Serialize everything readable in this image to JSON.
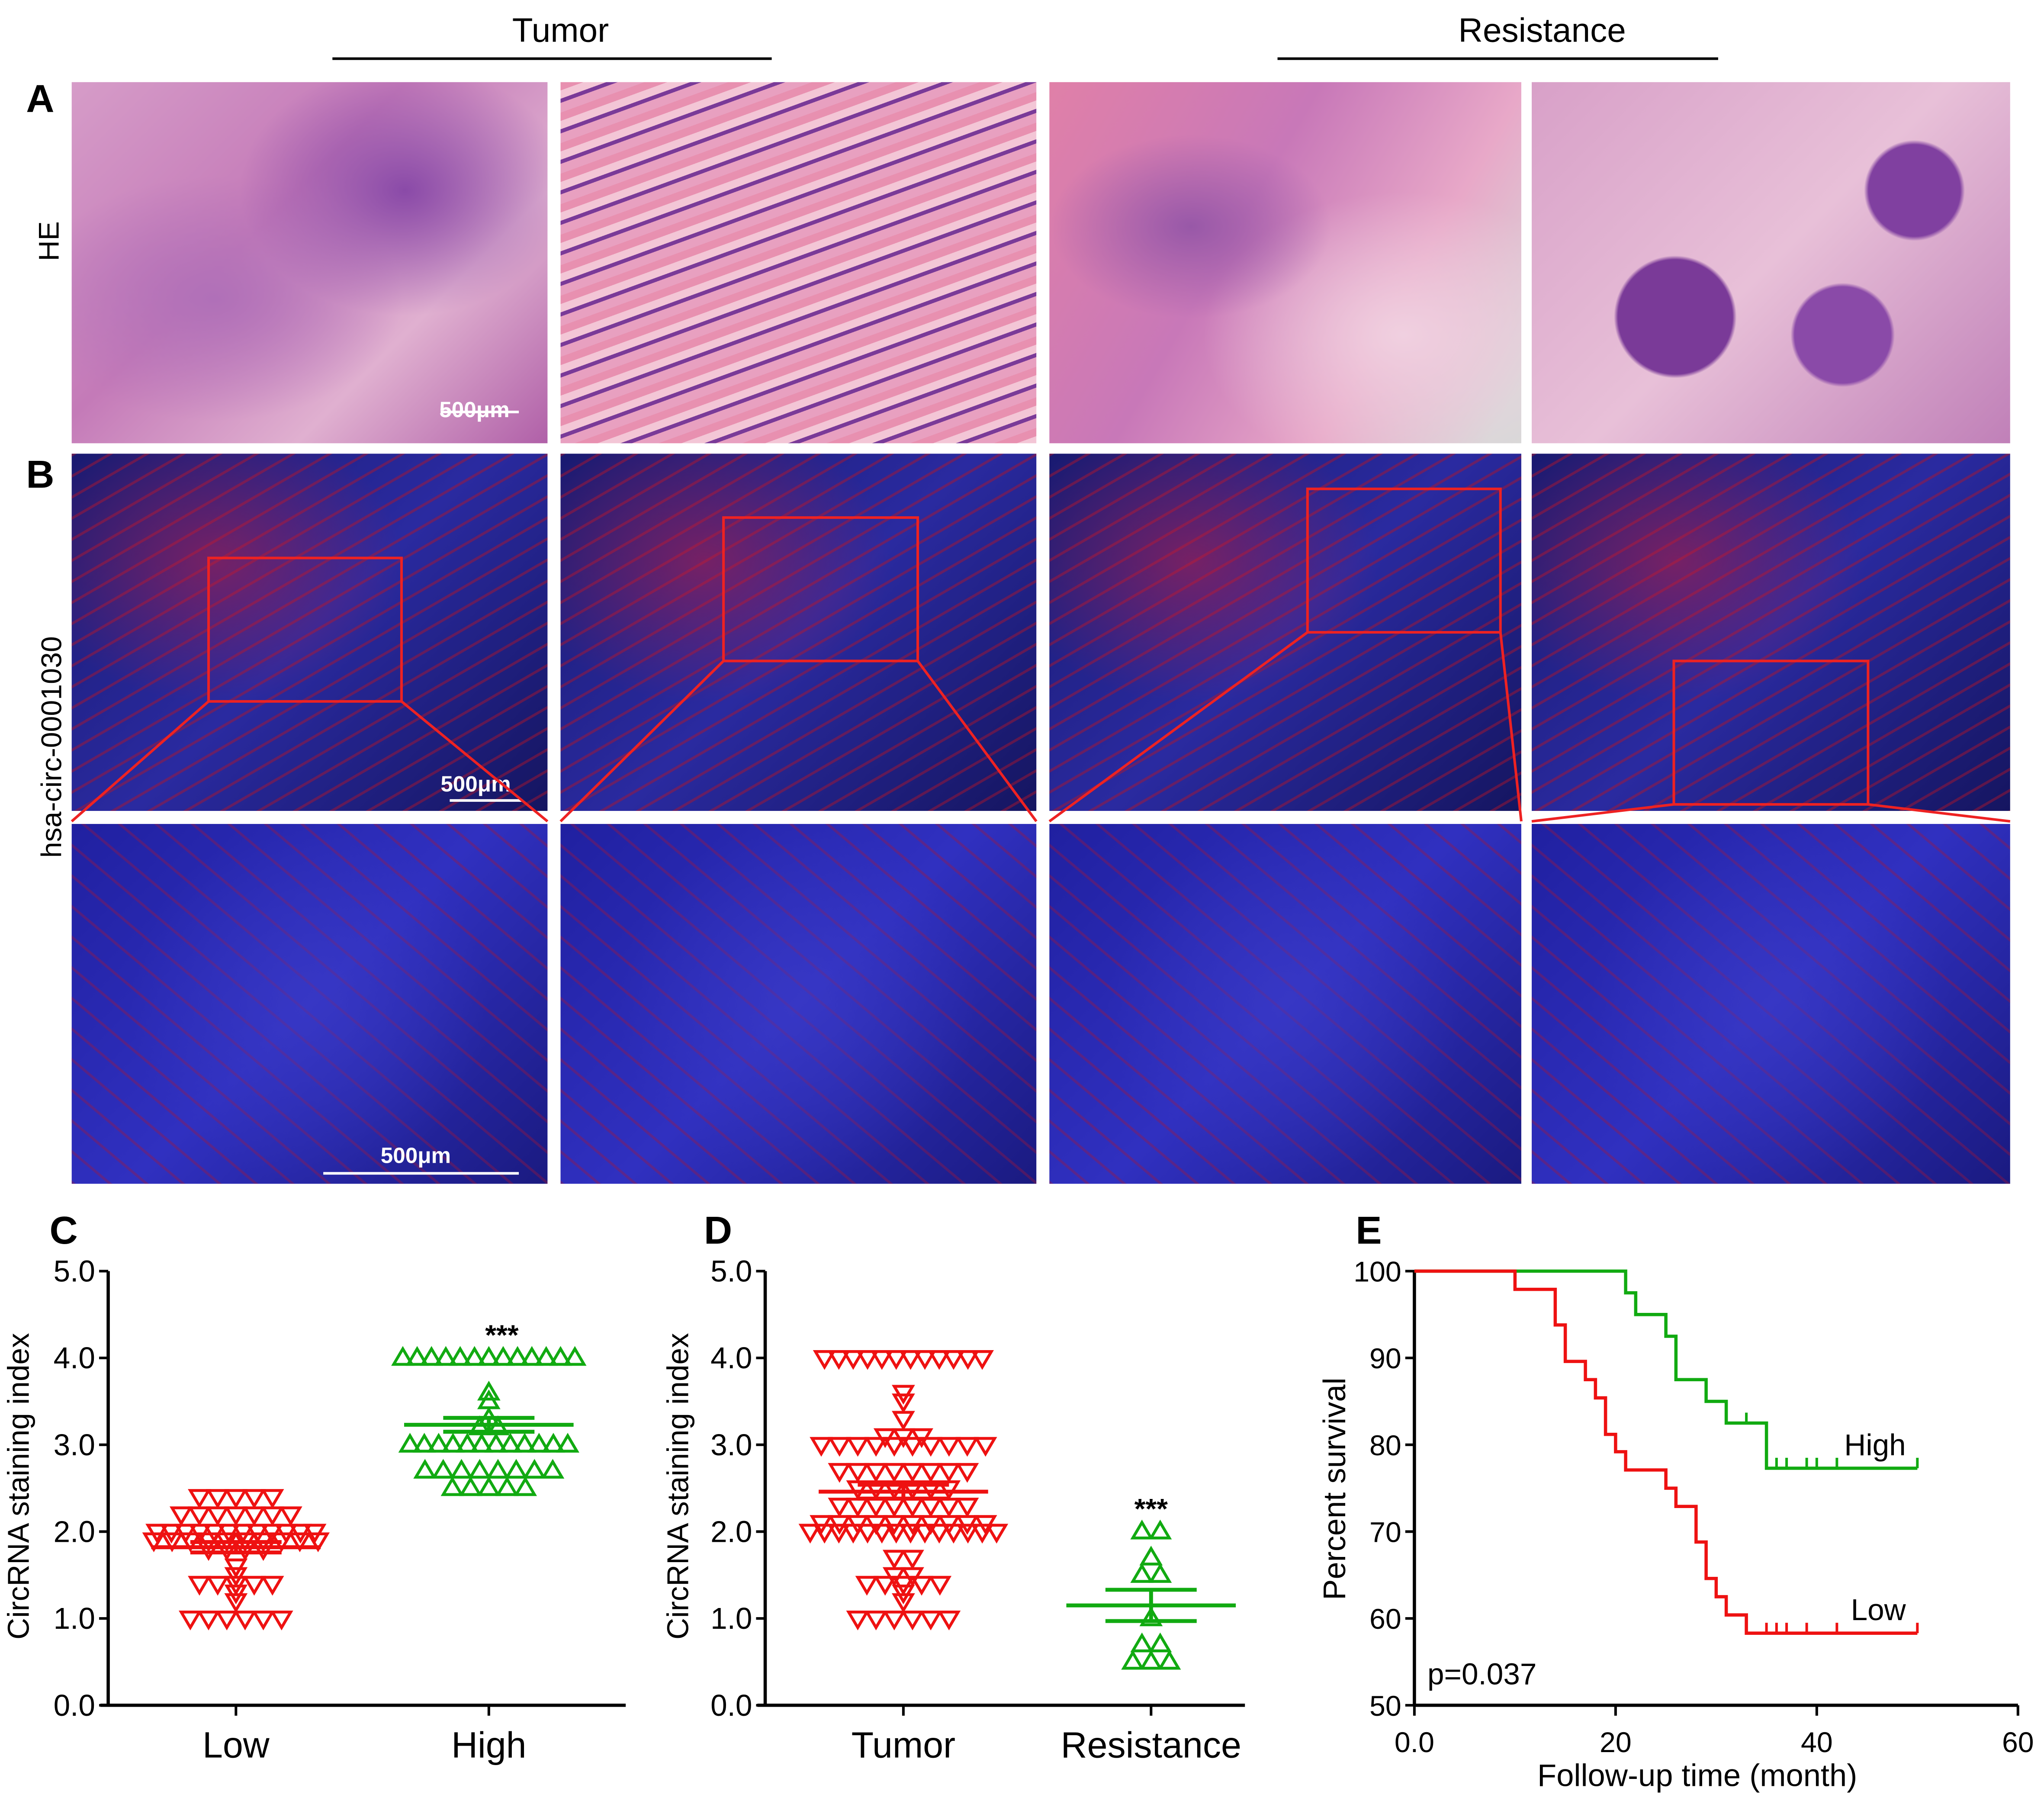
{
  "headers": {
    "tumor": "Tumor",
    "resistance": "Resistance"
  },
  "panel_letters": {
    "a": "A",
    "b": "B",
    "c": "C",
    "d": "D",
    "e": "E"
  },
  "row_labels": {
    "he": "HE",
    "circ": "hsa-circ-0001030"
  },
  "scale_bars": {
    "a": "500μm",
    "b_top": "500μm",
    "b_bottom": "500μm"
  },
  "colors": {
    "red": "#ee1111",
    "green": "#11aa11"
  },
  "chart_data": [
    {
      "type": "scatter",
      "panel": "C",
      "ylabel": "CircRNA staining index",
      "ylim": [
        0,
        5
      ],
      "yticks": [
        "0.0",
        "1.0",
        "2.0",
        "3.0",
        "4.0",
        "5.0"
      ],
      "categories": [
        "Low",
        "High"
      ],
      "series": [
        {
          "category": "Low",
          "marker": "triangle-down",
          "color": "#ee1111",
          "mean": 1.82,
          "sem": 0.06,
          "values": [
            2.4,
            2.4,
            2.4,
            2.4,
            2.4,
            2.2,
            2.2,
            2.2,
            2.2,
            2.2,
            2.2,
            2.2,
            2.0,
            2.0,
            2.0,
            2.0,
            2.0,
            2.0,
            2.0,
            2.0,
            2.0,
            2.0,
            2.0,
            2.0,
            1.9,
            1.9,
            1.9,
            1.9,
            1.9,
            1.9,
            1.9,
            1.9,
            1.9,
            1.9,
            1.8,
            1.8,
            1.8,
            1.8,
            1.6,
            1.5,
            1.4,
            1.4,
            1.4,
            1.4,
            1.4,
            1.3,
            1.2,
            1.0,
            1.0,
            1.0,
            1.0,
            1.0,
            1.0
          ]
        },
        {
          "category": "High",
          "marker": "triangle-up",
          "color": "#11aa11",
          "mean": 3.23,
          "sem": 0.08,
          "values": [
            4.0,
            4.0,
            4.0,
            4.0,
            4.0,
            4.0,
            4.0,
            4.0,
            4.0,
            4.0,
            4.0,
            4.0,
            4.0,
            3.6,
            3.5,
            3.3,
            3.2,
            3.2,
            3.0,
            3.0,
            3.0,
            3.0,
            3.0,
            3.0,
            3.0,
            3.0,
            3.0,
            3.0,
            3.0,
            3.0,
            2.7,
            2.7,
            2.7,
            2.7,
            2.7,
            2.7,
            2.7,
            2.7,
            2.5,
            2.5,
            2.5,
            2.5,
            2.5
          ]
        }
      ],
      "annotation": "***"
    },
    {
      "type": "scatter",
      "panel": "D",
      "ylabel": "CircRNA staining index",
      "ylim": [
        0,
        5
      ],
      "yticks": [
        "0.0",
        "1.0",
        "2.0",
        "3.0",
        "4.0",
        "5.0"
      ],
      "categories": [
        "Tumor",
        "Resistance"
      ],
      "series": [
        {
          "category": "Tumor",
          "marker": "triangle-down",
          "color": "#ee1111",
          "mean": 2.46,
          "sem": 0.08,
          "values": [
            4.0,
            4.0,
            4.0,
            4.0,
            4.0,
            4.0,
            4.0,
            4.0,
            4.0,
            4.0,
            4.0,
            4.0,
            3.6,
            3.5,
            3.3,
            3.1,
            3.1,
            3.1,
            3.0,
            3.0,
            3.0,
            3.0,
            3.0,
            3.0,
            3.0,
            3.0,
            3.0,
            3.0,
            2.7,
            2.7,
            2.7,
            2.7,
            2.7,
            2.7,
            2.7,
            2.7,
            2.5,
            2.5,
            2.5,
            2.5,
            2.5,
            2.5,
            2.3,
            2.3,
            2.3,
            2.3,
            2.3,
            2.3,
            2.3,
            2.3,
            2.1,
            2.1,
            2.1,
            2.1,
            2.1,
            2.1,
            2.1,
            2.1,
            2.1,
            2.1,
            2.0,
            2.0,
            2.0,
            2.0,
            2.0,
            2.0,
            2.0,
            2.0,
            2.0,
            2.0,
            2.0,
            2.0,
            2.0,
            2.0,
            1.7,
            1.7,
            1.5,
            1.5,
            1.4,
            1.4,
            1.4,
            1.4,
            1.4,
            1.3,
            1.2,
            1.0,
            1.0,
            1.0,
            1.0,
            1.0,
            1.0
          ]
        },
        {
          "category": "Resistance",
          "marker": "triangle-up",
          "color": "#11aa11",
          "mean": 1.15,
          "sem": 0.18,
          "values": [
            2.0,
            2.0,
            1.7,
            1.5,
            1.5,
            1.0,
            0.7,
            0.7,
            0.5,
            0.5,
            0.5
          ]
        }
      ],
      "annotation": "***"
    },
    {
      "type": "line",
      "panel": "E",
      "xlabel": "Follow-up time (month)",
      "ylabel": "Percent survival",
      "xlim": [
        0,
        60
      ],
      "ylim": [
        50,
        100
      ],
      "xticks": [
        "0.0",
        "20",
        "40",
        "60"
      ],
      "yticks": [
        "50",
        "60",
        "70",
        "80",
        "90",
        "100"
      ],
      "annotation": "p=0.037",
      "series": [
        {
          "name": "High",
          "color": "#11aa11",
          "steps": [
            [
              0,
              100
            ],
            [
              21,
              97.5
            ],
            [
              22,
              95
            ],
            [
              25,
              92.5
            ],
            [
              26,
              87.5
            ],
            [
              29,
              85
            ],
            [
              31,
              82.5
            ],
            [
              35,
              77.3
            ]
          ],
          "end": 50,
          "censored": [
            33,
            36,
            37,
            39,
            40,
            42,
            50
          ]
        },
        {
          "name": "Low",
          "color": "#ee1111",
          "steps": [
            [
              0,
              100
            ],
            [
              10,
              97.9
            ],
            [
              14,
              93.8
            ],
            [
              15,
              89.6
            ],
            [
              17,
              87.5
            ],
            [
              18,
              85.4
            ],
            [
              19,
              81.2
            ],
            [
              20,
              79.2
            ],
            [
              21,
              77.1
            ],
            [
              25,
              75
            ],
            [
              26,
              72.9
            ],
            [
              28,
              68.8
            ],
            [
              29,
              64.6
            ],
            [
              30,
              62.5
            ],
            [
              31,
              60.4
            ],
            [
              33,
              58.3
            ]
          ],
          "end": 50,
          "censored": [
            35,
            36,
            37,
            39,
            42,
            50
          ]
        }
      ]
    }
  ]
}
